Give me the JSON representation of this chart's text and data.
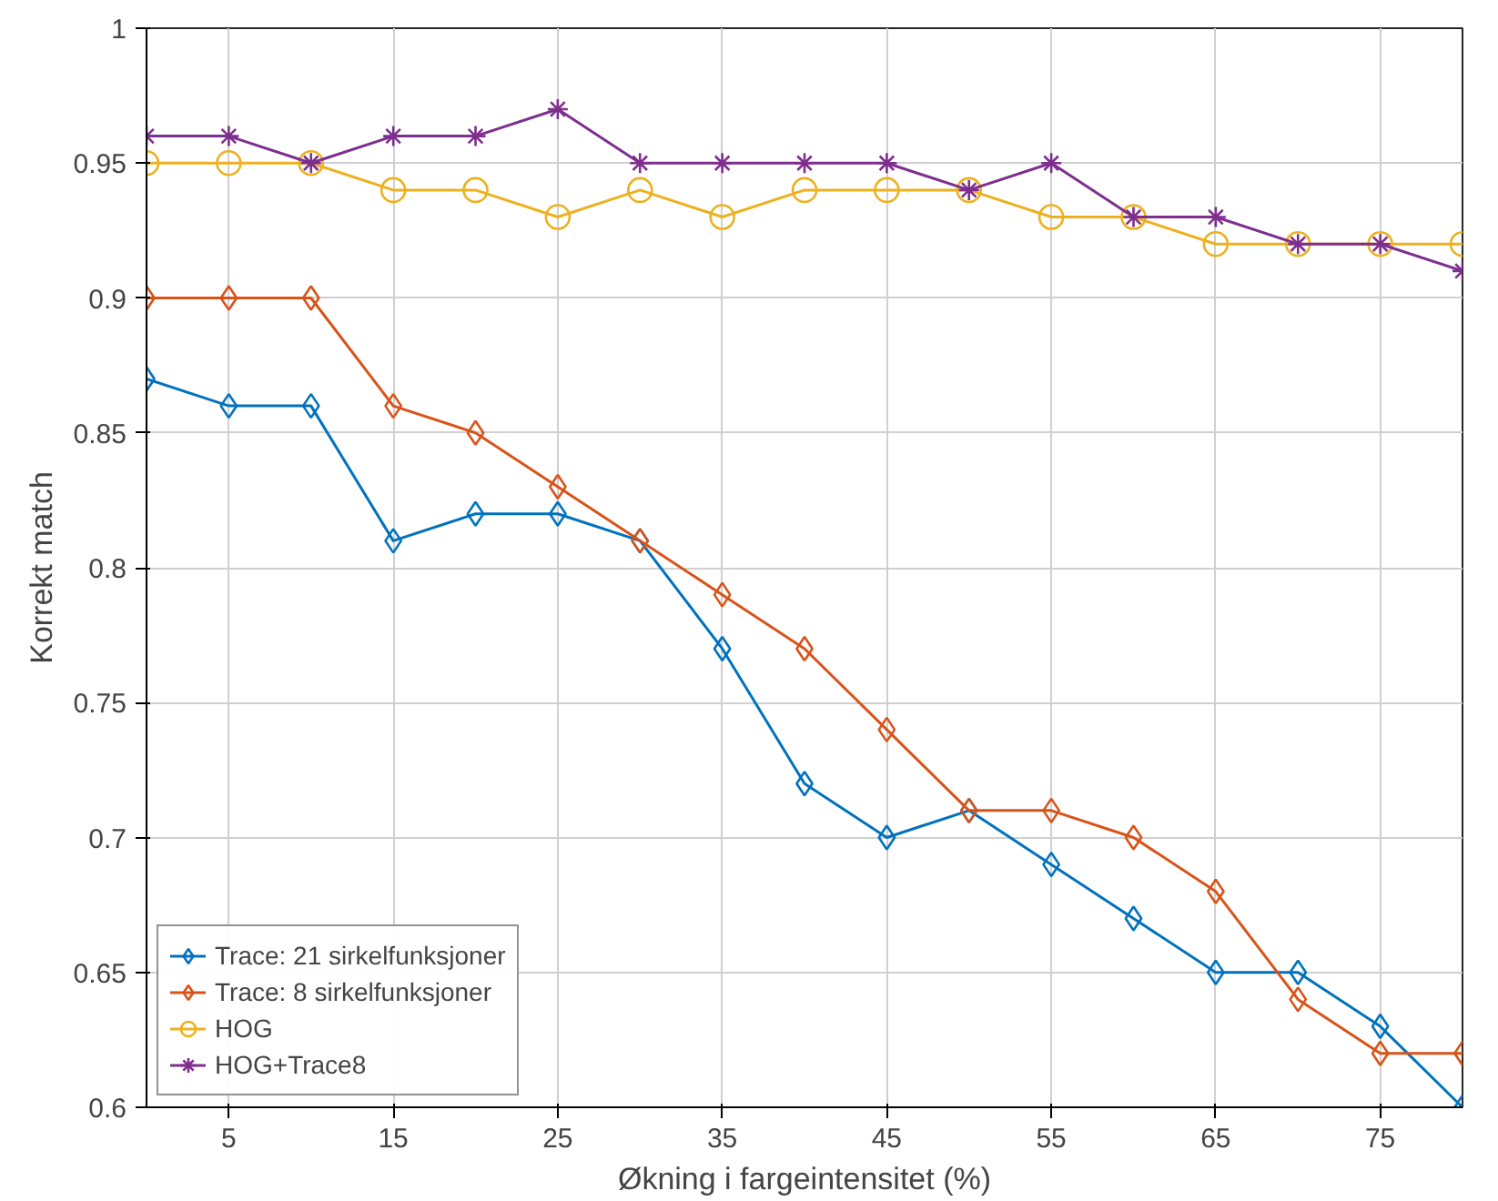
{
  "chart_data": {
    "type": "line",
    "xlabel": "Økning i fargeintensitet (%)",
    "ylabel": "Korrekt match",
    "x": [
      0,
      5,
      10,
      15,
      20,
      25,
      30,
      35,
      40,
      45,
      50,
      55,
      60,
      65,
      70,
      75,
      80
    ],
    "series": [
      {
        "name": "Trace: 21 sirkelfunksjoner",
        "color": "#0072bd",
        "marker": "diamond",
        "values": [
          0.87,
          0.86,
          0.86,
          0.81,
          0.82,
          0.82,
          0.81,
          0.77,
          0.72,
          0.7,
          0.71,
          0.69,
          0.67,
          0.65,
          0.65,
          0.63,
          0.6
        ]
      },
      {
        "name": "Trace: 8 sirkelfunksjoner",
        "color": "#d95319",
        "marker": "diamond",
        "values": [
          0.9,
          0.9,
          0.9,
          0.86,
          0.85,
          0.83,
          0.81,
          0.79,
          0.77,
          0.74,
          0.71,
          0.71,
          0.7,
          0.68,
          0.64,
          0.62,
          0.62
        ]
      },
      {
        "name": "HOG",
        "color": "#edb120",
        "marker": "circle",
        "values": [
          0.95,
          0.95,
          0.95,
          0.94,
          0.94,
          0.93,
          0.94,
          0.93,
          0.94,
          0.94,
          0.94,
          0.93,
          0.93,
          0.92,
          0.92,
          0.92,
          0.92
        ]
      },
      {
        "name": "HOG+Trace8",
        "color": "#7e2f8e",
        "marker": "cross",
        "values": [
          0.96,
          0.96,
          0.95,
          0.96,
          0.96,
          0.97,
          0.95,
          0.95,
          0.95,
          0.95,
          0.94,
          0.95,
          0.93,
          0.93,
          0.92,
          0.92,
          0.91
        ]
      }
    ],
    "xlim": [
      0,
      80
    ],
    "xticks": [
      5,
      15,
      25,
      35,
      45,
      55,
      65,
      75
    ],
    "ylim": [
      0.6,
      1
    ],
    "yticks": [
      0.6,
      0.65,
      0.7,
      0.75,
      0.8,
      0.85,
      0.9,
      0.95,
      1
    ],
    "grid": true,
    "legend": "bottom left",
    "line_style": "solid"
  }
}
